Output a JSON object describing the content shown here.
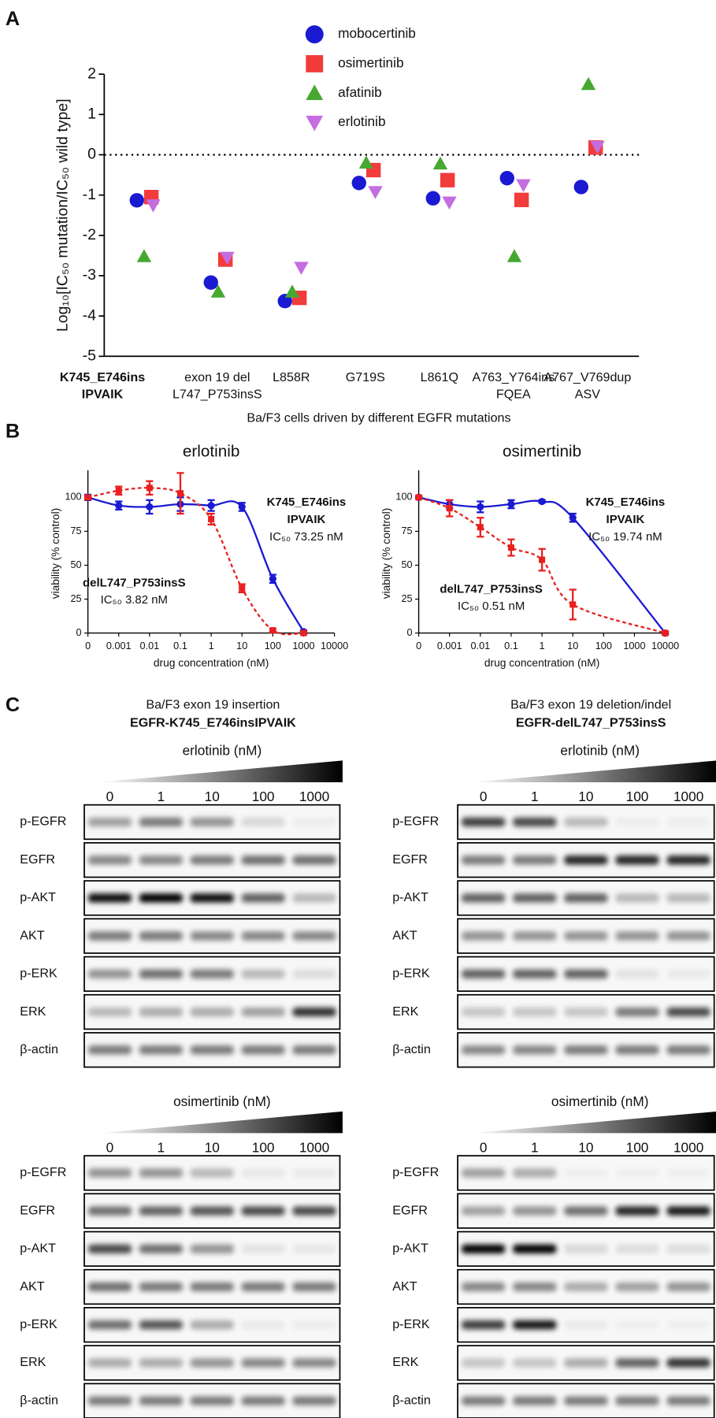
{
  "panel_labels": [
    "A",
    "B",
    "C"
  ],
  "chart_data": [
    {
      "type": "scatter",
      "ylabel": "Log₁₀[IC₅₀ mutation/IC₅₀ wild type]",
      "xlabel": "Ba/F3 cells driven by different EGFR mutations",
      "categories": [
        [
          "K745_E746ins",
          "IPVAIK"
        ],
        [
          "exon 19 del",
          "L747_P753insS"
        ],
        [
          "L858R"
        ],
        [
          "G719S"
        ],
        [
          "L861Q"
        ],
        [
          "A763_Y764ins",
          "FQEA"
        ],
        [
          "A767_V769dup",
          "ASV"
        ]
      ],
      "ylim": [
        -5,
        2
      ],
      "yticks": [
        -5,
        -4,
        -3,
        -2,
        -1,
        0,
        1,
        2
      ],
      "reference_line": 0,
      "series": [
        {
          "name": "mobocertinib",
          "color": "#1a1ad2",
          "marker": "circle",
          "values": [
            -1.13,
            -3.17,
            -3.63,
            -0.7,
            -1.08,
            -0.58,
            -0.8
          ]
        },
        {
          "name": "osimertinib",
          "color": "#f23b3b",
          "marker": "square",
          "values": [
            -1.05,
            -2.6,
            -3.55,
            -0.38,
            -0.63,
            -1.12,
            0.18
          ]
        },
        {
          "name": "afatinib",
          "color": "#46a831",
          "marker": "triangle-up",
          "values": [
            -2.52,
            -3.4,
            -3.4,
            -0.2,
            -0.22,
            -2.52,
            1.75
          ]
        },
        {
          "name": "erlotinib",
          "color": "#c46de0",
          "marker": "triangle-down",
          "values": [
            -1.25,
            -2.55,
            -2.8,
            -0.92,
            -1.18,
            -0.75,
            0.2
          ]
        }
      ]
    },
    {
      "type": "line",
      "title": "erlotinib",
      "ylabel": "viability (% control)",
      "xlabel": "drug concentration (nM)",
      "categories": [
        "0",
        "0.001",
        "0.01",
        "0.1",
        "1",
        "10",
        "100",
        "1000",
        "10000"
      ],
      "ylim": [
        0,
        120
      ],
      "yticks": [
        0,
        25,
        50,
        75,
        100
      ],
      "series": [
        {
          "label": [
            "K745_E746ins",
            "IPVAIK"
          ],
          "ic50": "IC₅₀  73.25 nM",
          "color": "#1a1ad2",
          "annotation_color": "#1f2a7a",
          "marker": "circle",
          "dashed": false,
          "values": [
            100,
            94,
            93,
            95,
            94,
            93,
            40,
            1,
            null
          ],
          "errors": [
            2,
            3,
            5,
            5,
            4,
            3,
            3,
            1,
            null
          ]
        },
        {
          "label": [
            "delL747_P753insS"
          ],
          "ic50": "IC₅₀  3.82 nM",
          "color": "#e8201f",
          "annotation_color": "#e8201f",
          "marker": "square",
          "dashed": true,
          "values": [
            100,
            105,
            107,
            103,
            84,
            33,
            2,
            0,
            null
          ],
          "errors": [
            1,
            3,
            5,
            15,
            4,
            3,
            1,
            1,
            null
          ]
        }
      ]
    },
    {
      "type": "line",
      "title": "osimertinib",
      "ylabel": "viability (% control)",
      "xlabel": "drug concentration (nM)",
      "categories": [
        "0",
        "0.001",
        "0.01",
        "0.1",
        "1",
        "10",
        "100",
        "1000",
        "10000"
      ],
      "ylim": [
        0,
        120
      ],
      "yticks": [
        0,
        25,
        50,
        75,
        100
      ],
      "series": [
        {
          "label": [
            "K745_E746ins",
            "IPVAIK"
          ],
          "ic50": "IC₅₀  19.74 nM",
          "color": "#1a1ad2",
          "annotation_color": "#1f2a7a",
          "marker": "circle",
          "dashed": false,
          "values": [
            100,
            95,
            93,
            95,
            97,
            85,
            null,
            null,
            0
          ],
          "errors": [
            1,
            3,
            4,
            3,
            1,
            3,
            null,
            null,
            1
          ]
        },
        {
          "label": [
            "delL747_P753insS"
          ],
          "ic50": "IC₅₀  0.51 nM",
          "color": "#e8201f",
          "annotation_color": "#e8201f",
          "marker": "square",
          "dashed": true,
          "values": [
            100,
            92,
            78,
            63,
            54,
            21,
            null,
            null,
            0
          ],
          "errors": [
            1,
            6,
            7,
            6,
            8,
            11,
            null,
            null,
            1
          ]
        }
      ]
    }
  ],
  "blots": {
    "row_labels": [
      "p-EGFR",
      "EGFR",
      "p-AKT",
      "AKT",
      "p-ERK",
      "ERK",
      "β-actin"
    ],
    "columns": [
      {
        "header": [
          "Ba/F3 exon 19 insertion",
          "EGFR-K745_E746insIPVAIK"
        ],
        "blocks": [
          {
            "drug": "erlotinib (nM)",
            "doses": [
              0,
              1,
              10,
              100,
              1000
            ]
          },
          {
            "drug": "osimertinib (nM)",
            "doses": [
              0,
              1,
              10,
              100,
              1000
            ]
          }
        ]
      },
      {
        "header": [
          "Ba/F3 exon 19 deletion/indel",
          "EGFR-delL747_P753insS"
        ],
        "blocks": [
          {
            "drug": "erlotinib (nM)",
            "doses": [
              0,
              1,
              10,
              100,
              1000
            ]
          },
          {
            "drug": "osimertinib (nM)",
            "doses": [
              0,
              1,
              10,
              100,
              1000
            ]
          }
        ]
      }
    ]
  }
}
